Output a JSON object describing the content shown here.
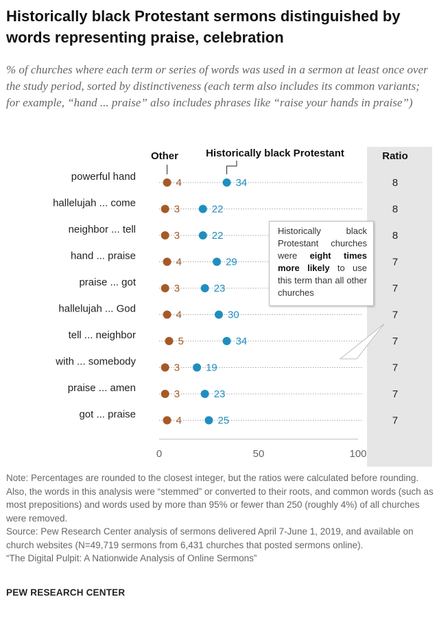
{
  "title": "Historically black Protestant sermons distinguished by words representing praise, celebration",
  "subtitle": "% of churches where each term or series of words was used in a sermon at least once over the study period, sorted by distinctiveness (each term also includes its common variants; for example, “hand ... praise” also includes phrases like “raise your hands in praise”)",
  "chart_data": {
    "type": "scatter",
    "series": [
      {
        "name": "Other",
        "color": "#a55a26",
        "values": [
          4,
          3,
          3,
          4,
          3,
          4,
          5,
          3,
          3,
          4
        ]
      },
      {
        "name": "Historically black Protestant",
        "color": "#1f8ebf",
        "values": [
          34,
          22,
          22,
          29,
          23,
          30,
          34,
          19,
          23,
          25
        ]
      }
    ],
    "categories": [
      "powerful hand",
      "hallelujah ... come",
      "neighbor ... tell",
      "hand ... praise",
      "praise ... got",
      "hallelujah ... God",
      "tell ... neighbor",
      "with ... somebody",
      "praise ... amen",
      "got ... praise"
    ],
    "ratio_header": "Ratio",
    "ratios": [
      8,
      8,
      8,
      7,
      7,
      7,
      7,
      7,
      7,
      7
    ],
    "xlim": [
      0,
      100
    ],
    "xticks": [
      0,
      50,
      100
    ],
    "legend": [
      "Other",
      "Historically black Protestant"
    ]
  },
  "callout": {
    "text_before": "Historically black Protestant churches were ",
    "bold": "eight times more likely",
    "text_after": " to use this term than all other churches"
  },
  "note": "Note: Percentages are rounded to the closest integer, but the ratios were calculated before rounding. Also, the words in this analysis were “stemmed” or converted to their roots, and common words (such as most prepositions) and words used by more than 95% or fewer than 250 (roughly 4%) of all churches were removed.",
  "source_line": "Source: Pew Research Center analysis of sermons delivered April 7-June 1, 2019, and available on church websites (N=49,719 sermons from 6,431 churches that posted sermons online).",
  "report": "“The Digital Pulpit: A Nationwide Analysis of Online Sermons”",
  "brand": "PEW RESEARCH CENTER"
}
